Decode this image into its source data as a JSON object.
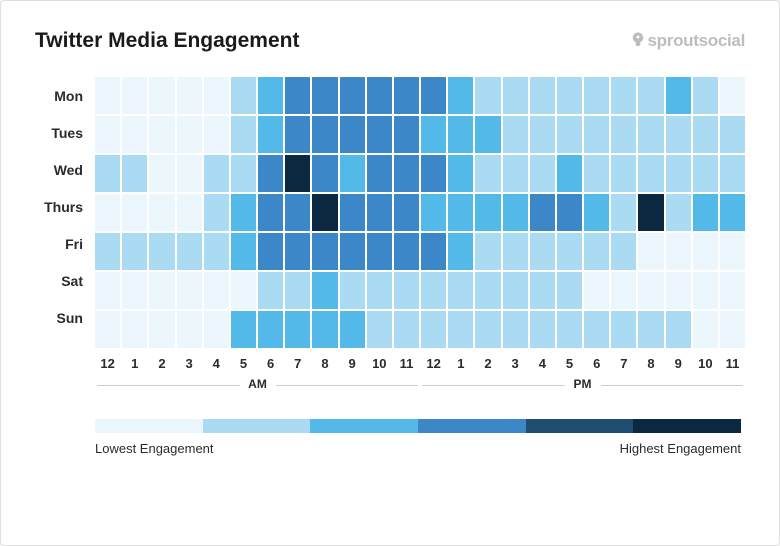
{
  "title": "Twitter Media Engagement",
  "brand": "sproutsocial",
  "heatmap": {
    "type": "heatmap",
    "days": [
      "Mon",
      "Tues",
      "Wed",
      "Thurs",
      "Fri",
      "Sat",
      "Sun"
    ],
    "hours": [
      "12",
      "1",
      "2",
      "3",
      "4",
      "5",
      "6",
      "7",
      "8",
      "9",
      "10",
      "11",
      "12",
      "1",
      "2",
      "3",
      "4",
      "5",
      "6",
      "7",
      "8",
      "9",
      "10",
      "11"
    ],
    "am_label": "AM",
    "pm_label": "PM",
    "scale_colors": [
      "#ecf7fd",
      "#aadbf3",
      "#52b9e9",
      "#3b87c8",
      "#1f4d6f",
      "#0a2940"
    ],
    "values": [
      [
        0,
        0,
        0,
        0,
        0,
        1,
        2,
        3,
        3,
        3,
        3,
        3,
        3,
        2,
        1,
        1,
        1,
        1,
        1,
        1,
        1,
        2,
        1,
        0
      ],
      [
        0,
        0,
        0,
        0,
        0,
        1,
        2,
        3,
        3,
        3,
        3,
        3,
        2,
        2,
        2,
        1,
        1,
        1,
        1,
        1,
        1,
        1,
        1,
        1
      ],
      [
        1,
        1,
        0,
        0,
        1,
        1,
        3,
        5,
        3,
        2,
        3,
        3,
        3,
        2,
        1,
        1,
        1,
        2,
        1,
        1,
        1,
        1,
        1,
        1
      ],
      [
        0,
        0,
        0,
        0,
        1,
        2,
        3,
        3,
        5,
        3,
        3,
        3,
        2,
        2,
        2,
        2,
        3,
        3,
        2,
        1,
        5,
        1,
        2,
        2
      ],
      [
        1,
        1,
        1,
        1,
        1,
        2,
        3,
        3,
        3,
        3,
        3,
        3,
        3,
        2,
        1,
        1,
        1,
        1,
        1,
        1,
        0,
        0,
        0,
        0
      ],
      [
        0,
        0,
        0,
        0,
        0,
        0,
        1,
        1,
        2,
        1,
        1,
        1,
        1,
        1,
        1,
        1,
        1,
        1,
        0,
        0,
        0,
        0,
        0,
        0
      ],
      [
        0,
        0,
        0,
        0,
        0,
        2,
        2,
        2,
        2,
        2,
        1,
        1,
        1,
        1,
        1,
        1,
        1,
        1,
        1,
        1,
        1,
        1,
        0,
        0
      ]
    ]
  },
  "legend": {
    "low": "Lowest Engagement",
    "high": "Highest Engagement"
  }
}
